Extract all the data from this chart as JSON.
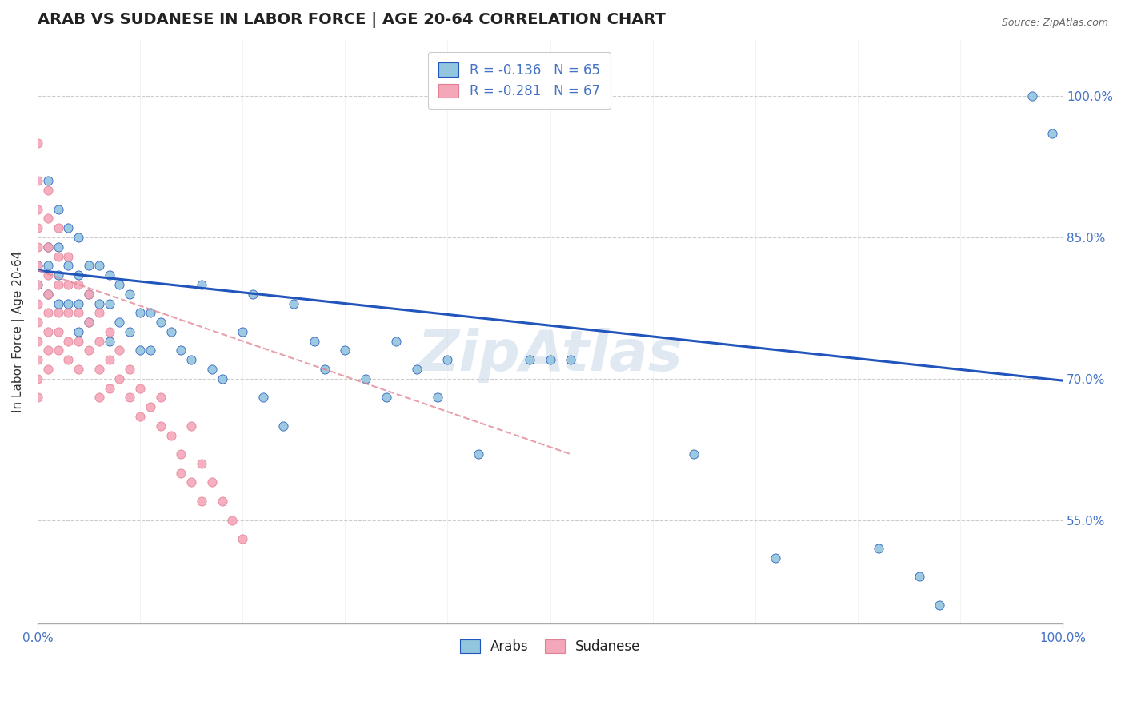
{
  "title": "ARAB VS SUDANESE IN LABOR FORCE | AGE 20-64 CORRELATION CHART",
  "source_text": "Source: ZipAtlas.com",
  "ylabel": "In Labor Force | Age 20-64",
  "xlim": [
    0.0,
    1.0
  ],
  "ylim": [
    0.44,
    1.06
  ],
  "yticks": [
    0.55,
    0.7,
    0.85,
    1.0
  ],
  "ytick_labels": [
    "55.0%",
    "70.0%",
    "85.0%",
    "100.0%"
  ],
  "xtick_labels": [
    "0.0%",
    "100.0%"
  ],
  "legend_arab": "R = -0.136   N = 65",
  "legend_sudanese": "R = -0.281   N = 67",
  "bottom_legend_arab": "Arabs",
  "bottom_legend_sudanese": "Sudanese",
  "arab_color": "#92C5DE",
  "sudanese_color": "#F4A7B9",
  "trendline_arab_color": "#2255BB",
  "trendline_sudanese_color": "#E08090",
  "grid_color": "#CCCCCC",
  "background_color": "#FFFFFF",
  "arab_scatter": [
    [
      0.0,
      0.82
    ],
    [
      0.0,
      0.8
    ],
    [
      0.01,
      0.84
    ],
    [
      0.01,
      0.82
    ],
    [
      0.01,
      0.79
    ],
    [
      0.01,
      0.91
    ],
    [
      0.02,
      0.88
    ],
    [
      0.02,
      0.84
    ],
    [
      0.02,
      0.81
    ],
    [
      0.02,
      0.78
    ],
    [
      0.03,
      0.86
    ],
    [
      0.03,
      0.82
    ],
    [
      0.03,
      0.78
    ],
    [
      0.04,
      0.85
    ],
    [
      0.04,
      0.81
    ],
    [
      0.04,
      0.78
    ],
    [
      0.04,
      0.75
    ],
    [
      0.05,
      0.82
    ],
    [
      0.05,
      0.79
    ],
    [
      0.05,
      0.76
    ],
    [
      0.06,
      0.82
    ],
    [
      0.06,
      0.78
    ],
    [
      0.07,
      0.81
    ],
    [
      0.07,
      0.78
    ],
    [
      0.07,
      0.74
    ],
    [
      0.08,
      0.8
    ],
    [
      0.08,
      0.76
    ],
    [
      0.09,
      0.79
    ],
    [
      0.09,
      0.75
    ],
    [
      0.1,
      0.77
    ],
    [
      0.1,
      0.73
    ],
    [
      0.11,
      0.77
    ],
    [
      0.11,
      0.73
    ],
    [
      0.12,
      0.76
    ],
    [
      0.13,
      0.75
    ],
    [
      0.14,
      0.73
    ],
    [
      0.15,
      0.72
    ],
    [
      0.16,
      0.8
    ],
    [
      0.17,
      0.71
    ],
    [
      0.18,
      0.7
    ],
    [
      0.2,
      0.75
    ],
    [
      0.21,
      0.79
    ],
    [
      0.22,
      0.68
    ],
    [
      0.24,
      0.65
    ],
    [
      0.25,
      0.78
    ],
    [
      0.27,
      0.74
    ],
    [
      0.28,
      0.71
    ],
    [
      0.3,
      0.73
    ],
    [
      0.32,
      0.7
    ],
    [
      0.34,
      0.68
    ],
    [
      0.35,
      0.74
    ],
    [
      0.37,
      0.71
    ],
    [
      0.39,
      0.68
    ],
    [
      0.4,
      0.72
    ],
    [
      0.43,
      0.62
    ],
    [
      0.48,
      0.72
    ],
    [
      0.5,
      0.72
    ],
    [
      0.52,
      0.72
    ],
    [
      0.64,
      0.62
    ],
    [
      0.72,
      0.51
    ],
    [
      0.82,
      0.52
    ],
    [
      0.86,
      0.49
    ],
    [
      0.88,
      0.46
    ],
    [
      0.97,
      1.0
    ],
    [
      0.99,
      0.96
    ]
  ],
  "sudanese_scatter": [
    [
      0.0,
      0.95
    ],
    [
      0.0,
      0.91
    ],
    [
      0.0,
      0.88
    ],
    [
      0.0,
      0.86
    ],
    [
      0.0,
      0.84
    ],
    [
      0.0,
      0.82
    ],
    [
      0.0,
      0.8
    ],
    [
      0.0,
      0.78
    ],
    [
      0.0,
      0.76
    ],
    [
      0.0,
      0.74
    ],
    [
      0.0,
      0.72
    ],
    [
      0.0,
      0.7
    ],
    [
      0.0,
      0.68
    ],
    [
      0.01,
      0.9
    ],
    [
      0.01,
      0.87
    ],
    [
      0.01,
      0.84
    ],
    [
      0.01,
      0.81
    ],
    [
      0.01,
      0.79
    ],
    [
      0.01,
      0.77
    ],
    [
      0.01,
      0.75
    ],
    [
      0.01,
      0.73
    ],
    [
      0.01,
      0.71
    ],
    [
      0.02,
      0.86
    ],
    [
      0.02,
      0.83
    ],
    [
      0.02,
      0.8
    ],
    [
      0.02,
      0.77
    ],
    [
      0.02,
      0.75
    ],
    [
      0.02,
      0.73
    ],
    [
      0.03,
      0.83
    ],
    [
      0.03,
      0.8
    ],
    [
      0.03,
      0.77
    ],
    [
      0.03,
      0.74
    ],
    [
      0.03,
      0.72
    ],
    [
      0.04,
      0.8
    ],
    [
      0.04,
      0.77
    ],
    [
      0.04,
      0.74
    ],
    [
      0.04,
      0.71
    ],
    [
      0.05,
      0.79
    ],
    [
      0.05,
      0.76
    ],
    [
      0.05,
      0.73
    ],
    [
      0.06,
      0.77
    ],
    [
      0.06,
      0.74
    ],
    [
      0.06,
      0.71
    ],
    [
      0.06,
      0.68
    ],
    [
      0.07,
      0.75
    ],
    [
      0.07,
      0.72
    ],
    [
      0.07,
      0.69
    ],
    [
      0.08,
      0.73
    ],
    [
      0.08,
      0.7
    ],
    [
      0.09,
      0.71
    ],
    [
      0.09,
      0.68
    ],
    [
      0.1,
      0.69
    ],
    [
      0.1,
      0.66
    ],
    [
      0.11,
      0.67
    ],
    [
      0.12,
      0.65
    ],
    [
      0.12,
      0.68
    ],
    [
      0.13,
      0.64
    ],
    [
      0.14,
      0.62
    ],
    [
      0.14,
      0.6
    ],
    [
      0.15,
      0.65
    ],
    [
      0.15,
      0.59
    ],
    [
      0.16,
      0.61
    ],
    [
      0.16,
      0.57
    ],
    [
      0.17,
      0.59
    ],
    [
      0.18,
      0.57
    ],
    [
      0.19,
      0.55
    ],
    [
      0.2,
      0.53
    ]
  ],
  "arab_trendline": [
    [
      0.0,
      0.815
    ],
    [
      1.0,
      0.698
    ]
  ],
  "sudanese_trendline": [
    [
      0.0,
      0.815
    ],
    [
      0.52,
      0.62
    ]
  ],
  "watermark_text": "ZipAtlas",
  "title_fontsize": 14,
  "axis_label_fontsize": 11,
  "tick_fontsize": 11
}
